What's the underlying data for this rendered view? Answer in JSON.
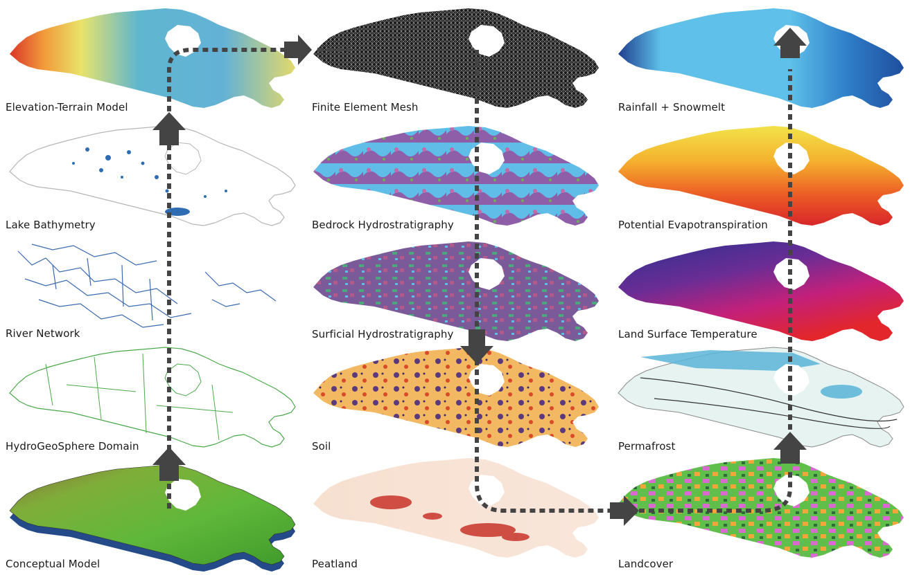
{
  "panels": {
    "elevation": "Elevation-Terrain Model",
    "lake": "Lake Bathymetry",
    "river": "River Network",
    "hgs": "HydroGeoSphere Domain",
    "conceptual": "Conceptual Model",
    "mesh": "Finite Element Mesh",
    "bedrock": "Bedrock Hydrostratigraphy",
    "surficial": "Surficial Hydrostratigraphy",
    "soil": "Soil",
    "peatland": "Peatland",
    "rainfall": "Rainfall + Snowmelt",
    "pet": "Potential Evapotranspiration",
    "lst": "Land Surface Temperature",
    "permafrost": "Permafrost",
    "landcover": "Landcover"
  },
  "colors": {
    "arrow": "#444444",
    "text": "#1a1a1a",
    "bathymetry": "#2f6db3",
    "river": "#3a69b0",
    "domain": "#4aa84a"
  }
}
